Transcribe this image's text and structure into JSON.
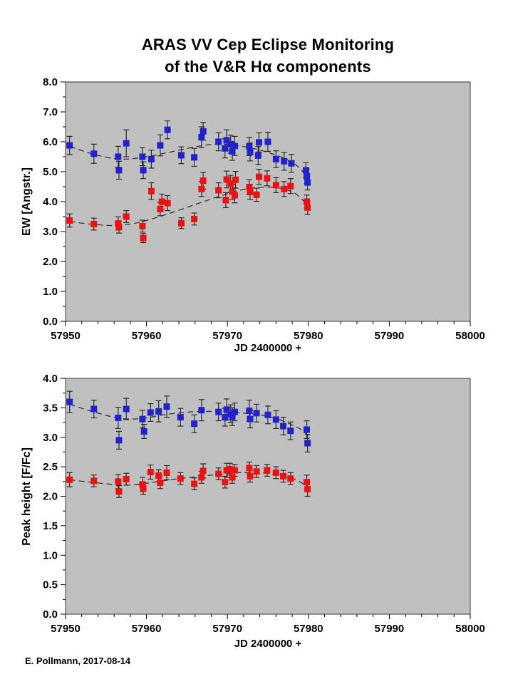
{
  "title": {
    "line1": "ARAS VV Cep Eclipse Monitoring",
    "line2": "of the V&R Hα components"
  },
  "footer": {
    "credit": "E. Pollmann, 2017-08-14"
  },
  "colors": {
    "page_bg": "#ffffff",
    "plot_bg": "#c0c0c0",
    "frame": "#3a3a3a",
    "blue": "#2222cc",
    "red": "#ee1111",
    "trend": "#333333",
    "errbar": "#2b2b2b",
    "text": "#000000"
  },
  "chart_data": [
    {
      "type": "scatter",
      "title": "",
      "xlabel": "JD 2400000 +",
      "ylabel": "EW [Angstr.]",
      "xlim": [
        57950,
        58000
      ],
      "ylim": [
        0.0,
        8.0
      ],
      "grid": false,
      "legend": "none",
      "marker": "square",
      "xticks": {
        "values": [
          57950,
          57960,
          57970,
          57980,
          57990,
          58000
        ],
        "labels": [
          "57950",
          "57960",
          "57970",
          "57980",
          "57990",
          "58000"
        ],
        "minor_step": 2
      },
      "yticks": {
        "values": [
          0,
          1,
          2,
          3,
          4,
          5,
          6,
          7,
          8
        ],
        "labels": [
          "0.0",
          "1.0",
          "2.0",
          "3.0",
          "4.0",
          "5.0",
          "6.0",
          "7.0",
          "8.0"
        ],
        "minor_step": 0.5
      },
      "series": [
        {
          "name": "blue",
          "color": "#2222cc",
          "points": [
            [
              57950.5,
              5.88,
              0.3
            ],
            [
              57953.5,
              5.6,
              0.32
            ],
            [
              57956.5,
              5.5,
              0.35
            ],
            [
              57956.6,
              5.05,
              0.3
            ],
            [
              57957.5,
              5.95,
              0.45
            ],
            [
              57959.5,
              5.5,
              0.3
            ],
            [
              57959.6,
              5.05,
              0.28
            ],
            [
              57960.6,
              5.42,
              0.3
            ],
            [
              57961.7,
              5.88,
              0.35
            ],
            [
              57962.6,
              6.4,
              0.3
            ],
            [
              57964.3,
              5.55,
              0.28
            ],
            [
              57965.9,
              5.48,
              0.3
            ],
            [
              57966.8,
              6.15,
              0.35
            ],
            [
              57967.0,
              6.35,
              0.3
            ],
            [
              57968.9,
              6.0,
              0.3
            ],
            [
              57969.7,
              5.78,
              0.32
            ],
            [
              57969.9,
              6.05,
              0.35
            ],
            [
              57970.4,
              5.92,
              0.3
            ],
            [
              57970.6,
              5.68,
              0.3
            ],
            [
              57970.9,
              5.86,
              0.32
            ],
            [
              57972.7,
              5.84,
              0.3
            ],
            [
              57972.8,
              5.66,
              0.3
            ],
            [
              57973.8,
              5.54,
              0.3
            ],
            [
              57973.9,
              5.98,
              0.32
            ],
            [
              57975.0,
              6.0,
              0.32
            ],
            [
              57976.0,
              5.42,
              0.28
            ],
            [
              57977.0,
              5.35,
              0.3
            ],
            [
              57977.9,
              5.28,
              0.3
            ],
            [
              57979.7,
              5.05,
              0.25
            ],
            [
              57979.8,
              4.85,
              0.25
            ],
            [
              57979.9,
              4.64,
              0.25
            ]
          ],
          "trend": [
            [
              57950.5,
              5.85
            ],
            [
              57953,
              5.62
            ],
            [
              57955.5,
              5.46
            ],
            [
              57957.5,
              5.42
            ],
            [
              57960,
              5.5
            ],
            [
              57963,
              5.66
            ],
            [
              57966,
              5.83
            ],
            [
              57968.5,
              5.92
            ],
            [
              57971,
              5.88
            ],
            [
              57973.5,
              5.76
            ],
            [
              57975.5,
              5.6
            ],
            [
              57977,
              5.45
            ],
            [
              57978.5,
              5.22
            ],
            [
              57980,
              4.78
            ]
          ]
        },
        {
          "name": "red",
          "color": "#ee1111",
          "points": [
            [
              57950.5,
              3.37,
              0.22
            ],
            [
              57953.5,
              3.25,
              0.2
            ],
            [
              57956.5,
              3.27,
              0.22
            ],
            [
              57956.6,
              3.15,
              0.2
            ],
            [
              57957.5,
              3.5,
              0.2
            ],
            [
              57959.5,
              3.18,
              0.2
            ],
            [
              57959.6,
              2.78,
              0.15
            ],
            [
              57960.6,
              4.35,
              0.28
            ],
            [
              57961.7,
              3.75,
              0.22
            ],
            [
              57961.9,
              4.0,
              0.25
            ],
            [
              57962.6,
              3.95,
              0.25
            ],
            [
              57964.3,
              3.28,
              0.18
            ],
            [
              57965.9,
              3.42,
              0.2
            ],
            [
              57966.8,
              4.42,
              0.25
            ],
            [
              57967.0,
              4.7,
              0.28
            ],
            [
              57968.9,
              4.38,
              0.25
            ],
            [
              57969.8,
              4.05,
              0.25
            ],
            [
              57969.9,
              4.74,
              0.28
            ],
            [
              57970.4,
              4.6,
              0.28
            ],
            [
              57970.6,
              4.33,
              0.25
            ],
            [
              57970.9,
              4.21,
              0.25
            ],
            [
              57971.0,
              4.73,
              0.28
            ],
            [
              57972.7,
              4.48,
              0.25
            ],
            [
              57972.8,
              4.33,
              0.25
            ],
            [
              57973.6,
              4.23,
              0.22
            ],
            [
              57973.9,
              4.83,
              0.25
            ],
            [
              57974.9,
              4.78,
              0.25
            ],
            [
              57976.0,
              4.55,
              0.25
            ],
            [
              57977.0,
              4.42,
              0.25
            ],
            [
              57977.8,
              4.52,
              0.25
            ],
            [
              57979.8,
              4.0,
              0.22
            ],
            [
              57979.9,
              3.8,
              0.22
            ]
          ],
          "trend": [
            [
              57950.5,
              3.34
            ],
            [
              57953,
              3.25
            ],
            [
              57956,
              3.2
            ],
            [
              57958,
              3.25
            ],
            [
              57960,
              3.37
            ],
            [
              57963,
              3.62
            ],
            [
              57966,
              3.9
            ],
            [
              57969,
              4.18
            ],
            [
              57971.5,
              4.38
            ],
            [
              57973.5,
              4.47
            ],
            [
              57975.5,
              4.48
            ],
            [
              57977,
              4.42
            ],
            [
              57978.5,
              4.25
            ],
            [
              57980,
              3.85
            ]
          ]
        }
      ]
    },
    {
      "type": "scatter",
      "title": "",
      "xlabel": "JD 2400000 +",
      "ylabel": "Peak height [F/Fc]",
      "xlim": [
        57950,
        58000
      ],
      "ylim": [
        0.0,
        4.0
      ],
      "grid": false,
      "legend": "none",
      "marker": "square",
      "xticks": {
        "values": [
          57950,
          57960,
          57970,
          57980,
          57990,
          58000
        ],
        "labels": [
          "57950",
          "57960",
          "57970",
          "57980",
          "57990",
          "58000"
        ],
        "minor_step": 2
      },
      "yticks": {
        "values": [
          0,
          0.5,
          1,
          1.5,
          2,
          2.5,
          3,
          3.5,
          4
        ],
        "labels": [
          "0.0",
          "0.5",
          "1.0",
          "1.5",
          "2.0",
          "2.5",
          "3.0",
          "3.5",
          "4.0"
        ],
        "minor_step": 0.25
      },
      "series": [
        {
          "name": "blue",
          "color": "#2222cc",
          "points": [
            [
              57950.5,
              3.6,
              0.18
            ],
            [
              57953.5,
              3.48,
              0.15
            ],
            [
              57956.5,
              3.33,
              0.18
            ],
            [
              57956.6,
              2.95,
              0.15
            ],
            [
              57957.5,
              3.48,
              0.18
            ],
            [
              57959.5,
              3.31,
              0.15
            ],
            [
              57959.7,
              3.1,
              0.12
            ],
            [
              57960.5,
              3.42,
              0.15
            ],
            [
              57961.5,
              3.44,
              0.18
            ],
            [
              57962.5,
              3.52,
              0.18
            ],
            [
              57964.2,
              3.34,
              0.15
            ],
            [
              57965.9,
              3.23,
              0.15
            ],
            [
              57966.8,
              3.46,
              0.18
            ],
            [
              57968.9,
              3.43,
              0.15
            ],
            [
              57969.7,
              3.34,
              0.15
            ],
            [
              57969.9,
              3.47,
              0.18
            ],
            [
              57970.4,
              3.4,
              0.15
            ],
            [
              57970.6,
              3.35,
              0.15
            ],
            [
              57970.9,
              3.43,
              0.15
            ],
            [
              57972.7,
              3.45,
              0.18
            ],
            [
              57972.8,
              3.31,
              0.15
            ],
            [
              57973.6,
              3.41,
              0.15
            ],
            [
              57975.0,
              3.38,
              0.15
            ],
            [
              57976.0,
              3.3,
              0.15
            ],
            [
              57976.9,
              3.19,
              0.15
            ],
            [
              57977.8,
              3.11,
              0.15
            ],
            [
              57979.8,
              3.13,
              0.15
            ],
            [
              57979.9,
              2.9,
              0.15
            ]
          ],
          "trend": [
            [
              57950.5,
              3.56
            ],
            [
              57953,
              3.45
            ],
            [
              57956,
              3.34
            ],
            [
              57958,
              3.31
            ],
            [
              57960,
              3.33
            ],
            [
              57962,
              3.38
            ],
            [
              57964.5,
              3.42
            ],
            [
              57967,
              3.44
            ],
            [
              57969.5,
              3.43
            ],
            [
              57972,
              3.41
            ],
            [
              57974,
              3.38
            ],
            [
              57976,
              3.32
            ],
            [
              57977.5,
              3.24
            ],
            [
              57979,
              3.14
            ],
            [
              57980,
              3.02
            ]
          ]
        },
        {
          "name": "red",
          "color": "#ee1111",
          "points": [
            [
              57950.5,
              2.28,
              0.12
            ],
            [
              57953.5,
              2.26,
              0.1
            ],
            [
              57956.5,
              2.25,
              0.12
            ],
            [
              57956.6,
              2.08,
              0.1
            ],
            [
              57957.5,
              2.29,
              0.1
            ],
            [
              57959.5,
              2.2,
              0.12
            ],
            [
              57959.6,
              2.13,
              0.1
            ],
            [
              57960.5,
              2.41,
              0.12
            ],
            [
              57961.5,
              2.35,
              0.1
            ],
            [
              57961.7,
              2.23,
              0.1
            ],
            [
              57962.5,
              2.4,
              0.12
            ],
            [
              57964.2,
              2.3,
              0.1
            ],
            [
              57965.9,
              2.21,
              0.1
            ],
            [
              57966.8,
              2.32,
              0.1
            ],
            [
              57967.0,
              2.43,
              0.12
            ],
            [
              57968.9,
              2.38,
              0.1
            ],
            [
              57969.7,
              2.24,
              0.1
            ],
            [
              57969.9,
              2.44,
              0.12
            ],
            [
              57970.3,
              2.46,
              0.1
            ],
            [
              57970.6,
              2.32,
              0.1
            ],
            [
              57970.9,
              2.44,
              0.1
            ],
            [
              57972.7,
              2.48,
              0.1
            ],
            [
              57972.8,
              2.34,
              0.1
            ],
            [
              57973.6,
              2.42,
              0.1
            ],
            [
              57974.9,
              2.44,
              0.1
            ],
            [
              57976.0,
              2.4,
              0.1
            ],
            [
              57976.9,
              2.34,
              0.1
            ],
            [
              57977.8,
              2.3,
              0.1
            ],
            [
              57979.8,
              2.24,
              0.12
            ],
            [
              57979.9,
              2.12,
              0.12
            ]
          ],
          "trend": [
            [
              57950.5,
              2.28
            ],
            [
              57953,
              2.24
            ],
            [
              57956,
              2.2
            ],
            [
              57958,
              2.19
            ],
            [
              57960,
              2.22
            ],
            [
              57963,
              2.28
            ],
            [
              57966,
              2.33
            ],
            [
              57969,
              2.37
            ],
            [
              57971.5,
              2.4
            ],
            [
              57973.5,
              2.4
            ],
            [
              57975.5,
              2.38
            ],
            [
              57977,
              2.34
            ],
            [
              57978.5,
              2.28
            ],
            [
              57980,
              2.15
            ]
          ]
        }
      ]
    }
  ]
}
